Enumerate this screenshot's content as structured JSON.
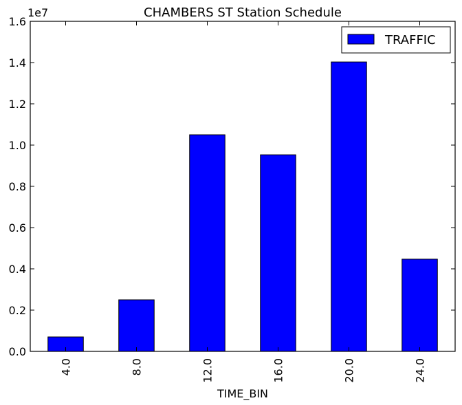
{
  "chart_data": {
    "type": "bar",
    "title": "CHAMBERS ST Station Schedule",
    "xlabel": "TIME_BIN",
    "ylabel": "",
    "y_scale_label": "1e7",
    "categories": [
      "4.0",
      "8.0",
      "12.0",
      "16.0",
      "20.0",
      "24.0"
    ],
    "y_tick_labels": [
      "0.0",
      "0.2",
      "0.4",
      "0.6",
      "0.8",
      "1.0",
      "1.2",
      "1.4",
      "1.6"
    ],
    "ylim": [
      0,
      16000000
    ],
    "series": [
      {
        "name": "TRAFFIC",
        "color": "#0000ff",
        "values": [
          700000,
          2500000,
          10500000,
          9530000,
          14030000,
          4470000
        ]
      }
    ],
    "legend_position": "top-right",
    "grid": false
  }
}
